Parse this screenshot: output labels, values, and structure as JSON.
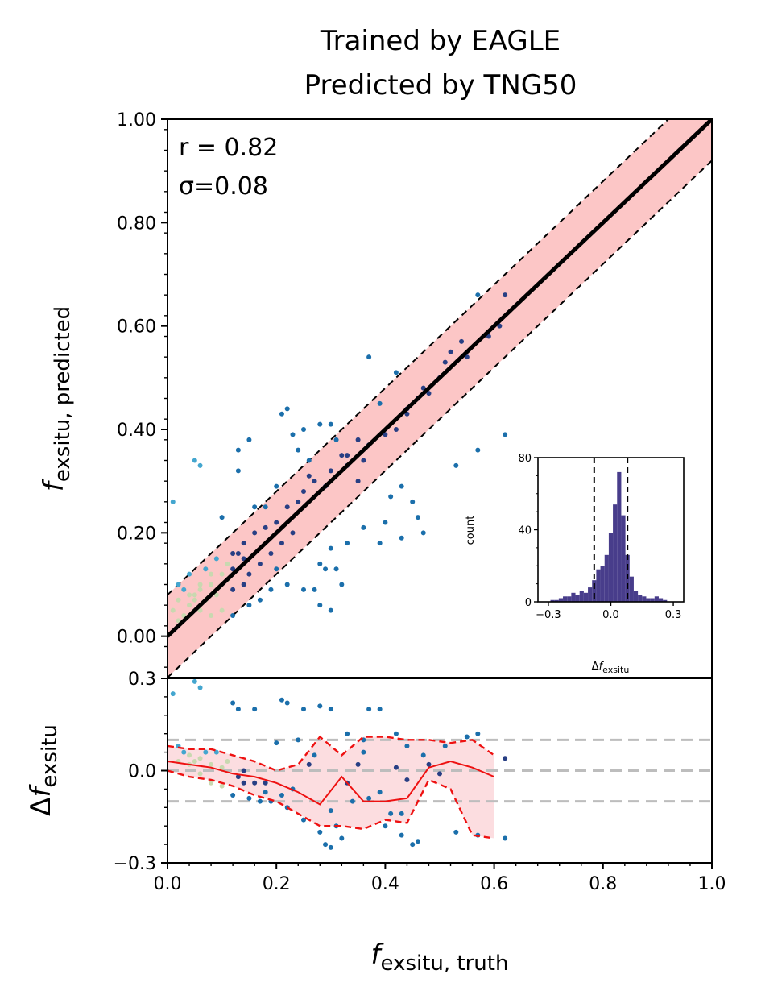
{
  "chart_data": [
    {
      "type": "scatter",
      "title_line1": "Trained by EAGLE",
      "title_line2": "Predicted by TNG50",
      "xlabel": "f_exsitu, truth",
      "ylabel_main": "f",
      "ylabel_sub": "exsitu, predicted",
      "xlim": [
        0,
        1
      ],
      "ylim": [
        -0.08,
        1.0
      ],
      "yticks": [
        0.0,
        0.2,
        0.4,
        0.6,
        0.8,
        1.0
      ],
      "ytick_labels": [
        "0.00",
        "0.20",
        "0.40",
        "0.60",
        "0.80",
        "1.00"
      ],
      "annotation_r": "r = 0.82",
      "annotation_sigma": "σ=0.08",
      "one_to_one": [
        [
          0,
          0
        ],
        [
          1,
          1
        ]
      ],
      "band_halfwidth": 0.08,
      "colors": {
        "band": "#fcc6c6",
        "line": "#000000",
        "dark": "#283f84",
        "mid": "#1b6fab",
        "light": "#44a6cf",
        "pale": "#c9d8b0"
      },
      "points": [
        [
          0.01,
          0.26
        ],
        [
          0.05,
          0.34
        ],
        [
          0.06,
          0.33
        ],
        [
          0.1,
          0.23
        ],
        [
          0.12,
          0.16
        ],
        [
          0.13,
          0.36
        ],
        [
          0.13,
          0.32
        ],
        [
          0.15,
          0.38
        ],
        [
          0.16,
          0.25
        ],
        [
          0.18,
          0.25
        ],
        [
          0.2,
          0.29
        ],
        [
          0.21,
          0.43
        ],
        [
          0.22,
          0.44
        ],
        [
          0.23,
          0.39
        ],
        [
          0.24,
          0.36
        ],
        [
          0.25,
          0.4
        ],
        [
          0.26,
          0.34
        ],
        [
          0.26,
          0.31
        ],
        [
          0.28,
          0.41
        ],
        [
          0.3,
          0.41
        ],
        [
          0.31,
          0.38
        ],
        [
          0.32,
          0.35
        ],
        [
          0.33,
          0.33
        ],
        [
          0.35,
          0.38
        ],
        [
          0.36,
          0.34
        ],
        [
          0.37,
          0.54
        ],
        [
          0.39,
          0.45
        ],
        [
          0.42,
          0.51
        ],
        [
          0.44,
          0.44
        ],
        [
          0.47,
          0.48
        ],
        [
          0.5,
          0.5
        ],
        [
          0.51,
          0.53
        ],
        [
          0.52,
          0.55
        ],
        [
          0.54,
          0.57
        ],
        [
          0.55,
          0.54
        ],
        [
          0.57,
          0.66
        ],
        [
          0.59,
          0.58
        ],
        [
          0.62,
          0.66
        ],
        [
          0.61,
          0.6
        ],
        [
          0.53,
          0.33
        ],
        [
          0.57,
          0.36
        ],
        [
          0.62,
          0.39
        ],
        [
          0.41,
          0.27
        ],
        [
          0.43,
          0.29
        ],
        [
          0.45,
          0.26
        ],
        [
          0.4,
          0.22
        ],
        [
          0.46,
          0.23
        ],
        [
          0.43,
          0.19
        ],
        [
          0.47,
          0.2
        ],
        [
          0.39,
          0.18
        ],
        [
          0.36,
          0.21
        ],
        [
          0.33,
          0.18
        ],
        [
          0.31,
          0.13
        ],
        [
          0.29,
          0.13
        ],
        [
          0.3,
          0.17
        ],
        [
          0.28,
          0.14
        ],
        [
          0.32,
          0.1
        ],
        [
          0.3,
          0.05
        ],
        [
          0.28,
          0.06
        ],
        [
          0.27,
          0.09
        ],
        [
          0.25,
          0.09
        ],
        [
          0.22,
          0.1
        ],
        [
          0.2,
          0.13
        ],
        [
          0.19,
          0.09
        ],
        [
          0.17,
          0.07
        ],
        [
          0.15,
          0.06
        ],
        [
          0.12,
          0.04
        ],
        [
          0.1,
          0.05
        ],
        [
          0.08,
          0.04
        ],
        [
          0.06,
          0.05
        ],
        [
          0.05,
          0.07
        ],
        [
          0.04,
          0.06
        ],
        [
          0.02,
          0.03
        ],
        [
          0.01,
          0.05
        ],
        [
          0.03,
          0.09
        ],
        [
          0.02,
          0.1
        ],
        [
          0.04,
          0.12
        ],
        [
          0.06,
          0.1
        ],
        [
          0.07,
          0.13
        ],
        [
          0.09,
          0.15
        ],
        [
          0.11,
          0.14
        ],
        [
          0.13,
          0.16
        ],
        [
          0.14,
          0.18
        ],
        [
          0.16,
          0.2
        ],
        [
          0.18,
          0.21
        ],
        [
          0.2,
          0.22
        ],
        [
          0.22,
          0.25
        ],
        [
          0.24,
          0.26
        ],
        [
          0.25,
          0.28
        ],
        [
          0.27,
          0.3
        ],
        [
          0.29,
          0.29
        ],
        [
          0.3,
          0.32
        ],
        [
          0.33,
          0.35
        ],
        [
          0.35,
          0.3
        ],
        [
          0.37,
          0.37
        ],
        [
          0.4,
          0.39
        ],
        [
          0.42,
          0.4
        ],
        [
          0.44,
          0.43
        ],
        [
          0.46,
          0.46
        ],
        [
          0.48,
          0.47
        ],
        [
          0.23,
          0.2
        ],
        [
          0.21,
          0.18
        ],
        [
          0.19,
          0.16
        ],
        [
          0.17,
          0.14
        ],
        [
          0.15,
          0.12
        ],
        [
          0.14,
          0.1
        ],
        [
          0.12,
          0.09
        ],
        [
          0.11,
          0.11
        ],
        [
          0.09,
          0.08
        ],
        [
          0.08,
          0.1
        ],
        [
          0.07,
          0.07
        ],
        [
          0.05,
          0.08
        ],
        [
          0.03,
          0.04
        ],
        [
          0.02,
          0.07
        ],
        [
          0.04,
          0.08
        ],
        [
          0.06,
          0.09
        ],
        [
          0.08,
          0.12
        ],
        [
          0.1,
          0.12
        ],
        [
          0.12,
          0.13
        ],
        [
          0.14,
          0.15
        ]
      ]
    },
    {
      "type": "line",
      "ylabel": "Δf_exsitu",
      "xlim": [
        0,
        1
      ],
      "ylim": [
        -0.3,
        0.3
      ],
      "xticks": [
        0.0,
        0.2,
        0.4,
        0.6,
        0.8,
        1.0
      ],
      "xtick_labels": [
        "0.0",
        "0.2",
        "0.4",
        "0.6",
        "0.8",
        "1.0"
      ],
      "yticks": [
        -0.3,
        0.0,
        0.3
      ],
      "ytick_labels": [
        "−0.3",
        "0.0",
        "0.3"
      ],
      "reference_lines": [
        -0.1,
        0.0,
        0.1
      ],
      "x": [
        0.0,
        0.04,
        0.08,
        0.12,
        0.16,
        0.2,
        0.24,
        0.28,
        0.32,
        0.36,
        0.4,
        0.44,
        0.48,
        0.52,
        0.56,
        0.6
      ],
      "series": [
        {
          "values": [
            0.03,
            0.02,
            0.01,
            -0.01,
            -0.02,
            -0.04,
            -0.07,
            -0.11,
            -0.02,
            -0.1,
            -0.1,
            -0.09,
            0.01,
            0.03,
            0.01,
            -0.02
          ]
        },
        {
          "values": [
            0.08,
            0.07,
            0.07,
            0.05,
            0.03,
            0.0,
            0.02,
            0.11,
            0.05,
            0.11,
            0.11,
            0.1,
            0.1,
            0.09,
            0.1,
            0.05
          ]
        },
        {
          "values": [
            0.0,
            -0.02,
            -0.03,
            -0.05,
            -0.08,
            -0.1,
            -0.14,
            -0.18,
            -0.18,
            -0.19,
            -0.16,
            -0.17,
            -0.03,
            -0.06,
            -0.21,
            -0.22
          ]
        }
      ],
      "points": [
        [
          0.01,
          0.25
        ],
        [
          0.05,
          0.29
        ],
        [
          0.06,
          0.27
        ],
        [
          0.12,
          0.22
        ],
        [
          0.13,
          0.2
        ],
        [
          0.16,
          0.2
        ],
        [
          0.2,
          0.09
        ],
        [
          0.21,
          0.23
        ],
        [
          0.22,
          0.22
        ],
        [
          0.25,
          0.2
        ],
        [
          0.28,
          0.21
        ],
        [
          0.3,
          0.2
        ],
        [
          0.33,
          0.12
        ],
        [
          0.36,
          0.1
        ],
        [
          0.37,
          0.2
        ],
        [
          0.39,
          0.2
        ],
        [
          0.42,
          0.12
        ],
        [
          0.44,
          0.08
        ],
        [
          0.47,
          0.05
        ],
        [
          0.51,
          0.08
        ],
        [
          0.55,
          0.11
        ],
        [
          0.57,
          0.12
        ],
        [
          0.62,
          0.04
        ],
        [
          0.53,
          -0.2
        ],
        [
          0.57,
          -0.21
        ],
        [
          0.62,
          -0.22
        ],
        [
          0.41,
          -0.14
        ],
        [
          0.43,
          -0.14
        ],
        [
          0.45,
          -0.24
        ],
        [
          0.4,
          -0.18
        ],
        [
          0.46,
          -0.23
        ],
        [
          0.43,
          -0.21
        ],
        [
          0.31,
          -0.18
        ],
        [
          0.29,
          -0.24
        ],
        [
          0.3,
          -0.13
        ],
        [
          0.28,
          -0.2
        ],
        [
          0.32,
          -0.22
        ],
        [
          0.3,
          -0.25
        ],
        [
          0.25,
          -0.16
        ],
        [
          0.22,
          -0.12
        ],
        [
          0.19,
          -0.1
        ],
        [
          0.17,
          -0.1
        ],
        [
          0.15,
          -0.09
        ],
        [
          0.12,
          -0.08
        ],
        [
          0.1,
          -0.05
        ],
        [
          0.08,
          -0.04
        ],
        [
          0.06,
          -0.01
        ],
        [
          0.04,
          0.02
        ],
        [
          0.03,
          0.06
        ],
        [
          0.02,
          0.08
        ],
        [
          0.05,
          0.03
        ],
        [
          0.07,
          0.06
        ],
        [
          0.09,
          0.06
        ],
        [
          0.11,
          0.03
        ],
        [
          0.14,
          0.0
        ],
        [
          0.16,
          -0.04
        ],
        [
          0.18,
          -0.07
        ],
        [
          0.23,
          -0.06
        ],
        [
          0.26,
          0.02
        ],
        [
          0.33,
          -0.04
        ],
        [
          0.35,
          0.02
        ],
        [
          0.37,
          -0.09
        ],
        [
          0.39,
          -0.07
        ],
        [
          0.42,
          0.01
        ],
        [
          0.44,
          -0.03
        ],
        [
          0.48,
          0.02
        ],
        [
          0.5,
          -0.01
        ],
        [
          0.34,
          -0.1
        ],
        [
          0.36,
          0.06
        ],
        [
          0.27,
          0.05
        ],
        [
          0.24,
          0.1
        ],
        [
          0.21,
          -0.08
        ],
        [
          0.18,
          -0.04
        ],
        [
          0.14,
          -0.04
        ],
        [
          0.13,
          -0.02
        ],
        [
          0.1,
          0.01
        ],
        [
          0.08,
          0.02
        ],
        [
          0.06,
          0.04
        ],
        [
          0.04,
          0.05
        ],
        [
          0.02,
          0.03
        ]
      ]
    },
    {
      "type": "bar",
      "xlabel": "Δf_exsitu",
      "ylabel": "count",
      "xlim": [
        -0.35,
        0.35
      ],
      "ylim": [
        0,
        80
      ],
      "xticks": [
        -0.3,
        0.0,
        0.3
      ],
      "xtick_labels": [
        "−0.3",
        "0.0",
        "0.3"
      ],
      "yticks": [
        0,
        40,
        80
      ],
      "ytick_labels": [
        "0",
        "40",
        "80"
      ],
      "dashed_lines": [
        -0.08,
        0.08
      ],
      "bin_width": 0.02,
      "bin_starts": [
        -0.31,
        -0.29,
        -0.27,
        -0.25,
        -0.23,
        -0.21,
        -0.19,
        -0.17,
        -0.15,
        -0.13,
        -0.11,
        -0.09,
        -0.07,
        -0.05,
        -0.03,
        -0.01,
        0.01,
        0.03,
        0.05,
        0.07,
        0.09,
        0.11,
        0.13,
        0.15,
        0.17,
        0.19,
        0.21,
        0.23,
        0.25,
        0.27
      ],
      "values": [
        0,
        1,
        1,
        2,
        3,
        3,
        5,
        4,
        6,
        5,
        8,
        12,
        18,
        20,
        26,
        38,
        54,
        72,
        48,
        26,
        14,
        6,
        4,
        3,
        2,
        2,
        3,
        2,
        1,
        0
      ]
    }
  ]
}
